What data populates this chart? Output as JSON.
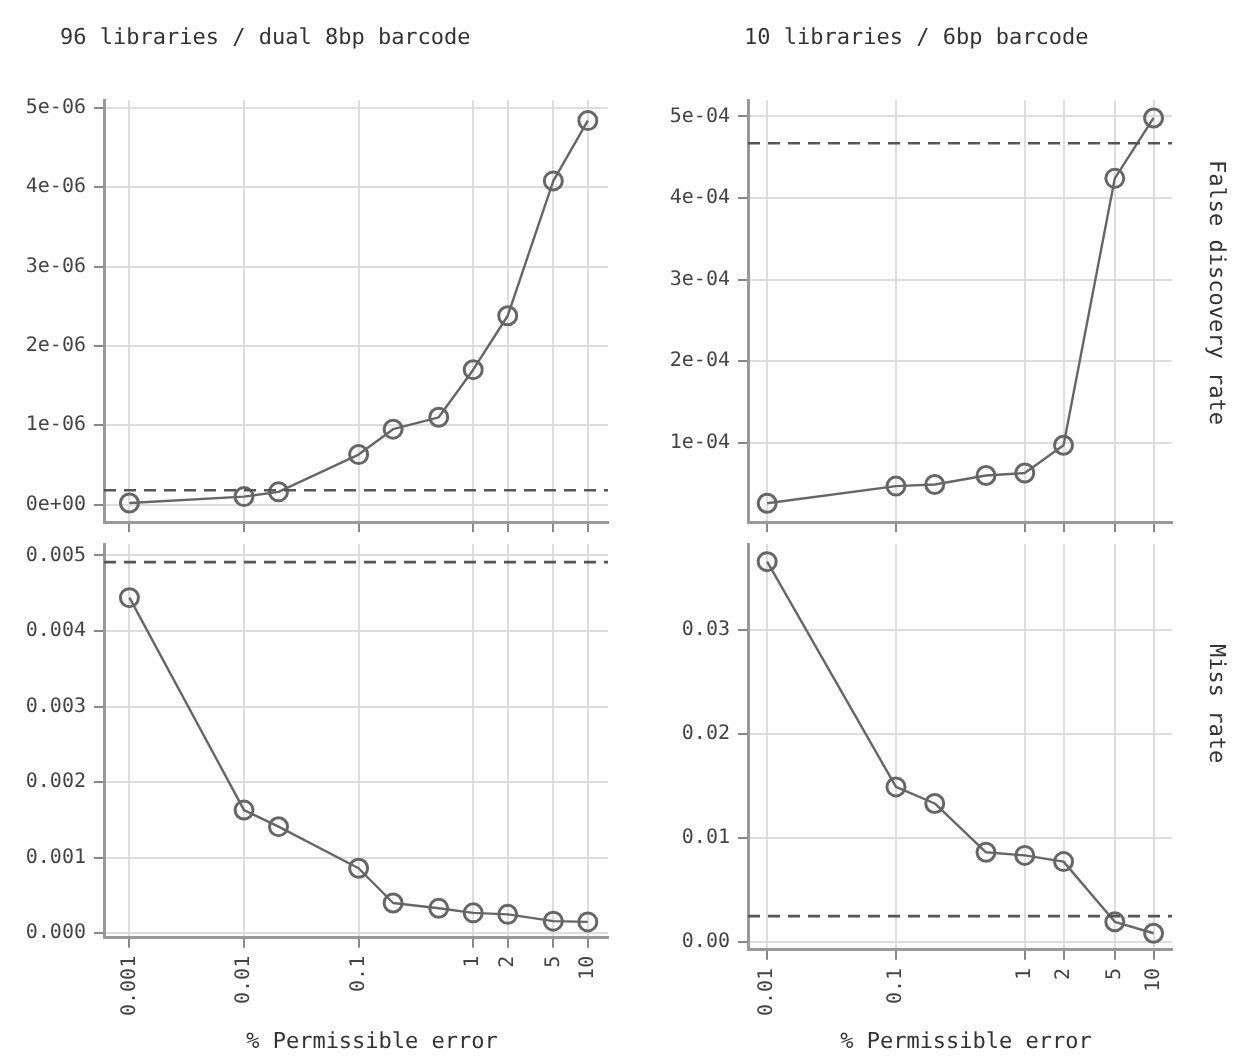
{
  "chart_data": [
    {
      "type": "line",
      "title": "96 libraries / dual 8bp barcode",
      "log": "x",
      "grid": true,
      "marker": "circle",
      "tick_labels": "y",
      "xlim": [
        0.00064,
        15
      ],
      "xticks": [
        0.001,
        0.01,
        0.1,
        1,
        2,
        5,
        10
      ],
      "ylim": [
        -2.2e-07,
        5.1e-06
      ],
      "yticks": [
        {
          "value": 0,
          "label": "0e+00"
        },
        {
          "value": 1e-06,
          "label": "1e-06"
        },
        {
          "value": 2e-06,
          "label": "2e-06"
        },
        {
          "value": 3e-06,
          "label": "3e-06"
        },
        {
          "value": 4e-06,
          "label": "4e-06"
        },
        {
          "value": 5e-06,
          "label": "5e-06"
        }
      ],
      "series": [
        {
          "color": "#666666",
          "x": [
            0.001,
            0.01,
            0.02,
            0.1,
            0.2,
            0.5,
            1,
            2,
            5,
            10
          ],
          "values": [
            2e-08,
            1e-07,
            1.6e-07,
            6.3e-07,
            9.5e-07,
            1.1e-06,
            1.7e-06,
            2.38e-06,
            4.08e-06,
            4.84e-06
          ]
        }
      ],
      "ref_lines": [
        {
          "axis": "y",
          "value": 1.8e-07,
          "color": "#555555",
          "line_style": "dashed"
        }
      ]
    },
    {
      "type": "line",
      "title": "10 libraries / 6bp barcode",
      "ylabel": "False discovery rate",
      "log": "x",
      "grid": true,
      "marker": "circle",
      "tick_labels": "y",
      "xlim": [
        0.0071,
        13.9
      ],
      "xticks": [
        0.01,
        0.1,
        1,
        2,
        5,
        10
      ],
      "ylim": [
        3e-06,
        0.00052
      ],
      "yticks": [
        {
          "value": 0.0001,
          "label": "1e-04"
        },
        {
          "value": 0.0002,
          "label": "2e-04"
        },
        {
          "value": 0.0003,
          "label": "3e-04"
        },
        {
          "value": 0.0004,
          "label": "4e-04"
        },
        {
          "value": 0.0005,
          "label": "5e-04"
        }
      ],
      "series": [
        {
          "color": "#666666",
          "x": [
            0.01,
            0.1,
            0.2,
            0.5,
            1,
            2,
            5,
            10
          ],
          "values": [
            2.6e-05,
            4.7e-05,
            4.9e-05,
            6e-05,
            6.3e-05,
            9.7e-05,
            0.000424,
            0.000498
          ]
        }
      ],
      "ref_lines": [
        {
          "axis": "y",
          "value": 0.000467,
          "color": "#555555",
          "line_style": "dashed"
        }
      ]
    },
    {
      "type": "line",
      "xlabel": "% Permissible error",
      "log": "x",
      "grid": true,
      "marker": "circle",
      "xlim": [
        0.00064,
        15
      ],
      "xticks": [
        0.001,
        0.01,
        0.1,
        1,
        2,
        5,
        10
      ],
      "ylim": [
        -6e-05,
        0.00515
      ],
      "yticks": [
        {
          "value": 0,
          "label": "0.000"
        },
        {
          "value": 0.001,
          "label": "0.001"
        },
        {
          "value": 0.002,
          "label": "0.002"
        },
        {
          "value": 0.003,
          "label": "0.003"
        },
        {
          "value": 0.004,
          "label": "0.004"
        },
        {
          "value": 0.005,
          "label": "0.005"
        }
      ],
      "series": [
        {
          "color": "#666666",
          "x": [
            0.001,
            0.01,
            0.02,
            0.1,
            0.2,
            0.5,
            1,
            2,
            5,
            10
          ],
          "values": [
            0.00444,
            0.00163,
            0.00141,
            0.00086,
            0.0004,
            0.00033,
            0.00027,
            0.00025,
            0.00016,
            0.00015
          ]
        }
      ],
      "ref_lines": [
        {
          "axis": "y",
          "value": 0.00491,
          "color": "#555555",
          "line_style": "dashed"
        }
      ]
    },
    {
      "type": "line",
      "xlabel": "% Permissible error",
      "ylabel": "Miss rate",
      "log": "x",
      "grid": true,
      "marker": "circle",
      "xlim": [
        0.0071,
        13.9
      ],
      "xticks": [
        0.01,
        0.1,
        1,
        2,
        5,
        10
      ],
      "ylim": [
        -0.0008,
        0.0383
      ],
      "yticks": [
        {
          "value": 0,
          "label": "0.00"
        },
        {
          "value": 0.01,
          "label": "0.01"
        },
        {
          "value": 0.02,
          "label": "0.02"
        },
        {
          "value": 0.03,
          "label": "0.03"
        }
      ],
      "series": [
        {
          "color": "#666666",
          "x": [
            0.01,
            0.1,
            0.2,
            0.5,
            1,
            2,
            5,
            10
          ],
          "values": [
            0.0366,
            0.0149,
            0.0133,
            0.0086,
            0.0083,
            0.0077,
            0.0019,
            0.0008
          ]
        }
      ],
      "ref_lines": [
        {
          "axis": "y",
          "value": 0.00245,
          "color": "#555555",
          "line_style": "dashed"
        }
      ]
    }
  ]
}
